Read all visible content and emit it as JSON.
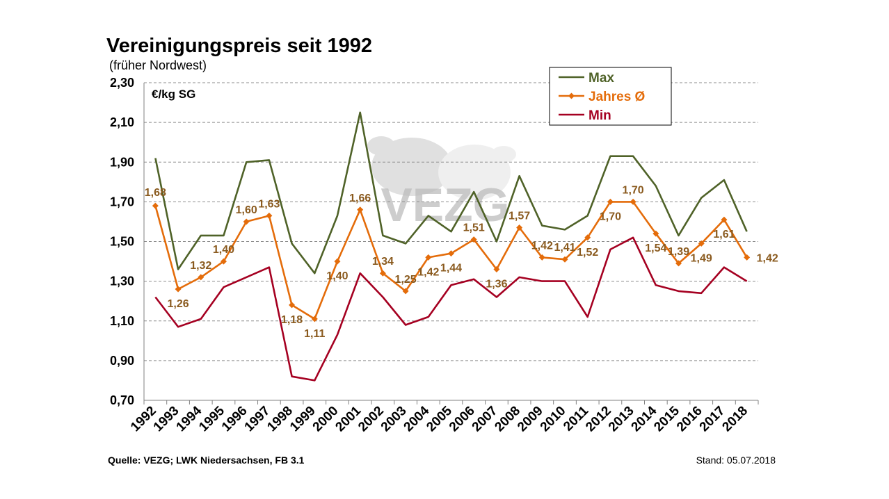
{
  "header": {
    "title": "Vereinigungspreis seit 1992",
    "subtitle": "(früher Nordwest)"
  },
  "footer": {
    "source": "Quelle: VEZG; LWK Niedersachsen, FB 3.1",
    "date": "Stand: 05.07.2018"
  },
  "watermark": "VEZG",
  "chart_data": {
    "type": "line",
    "title": "Vereinigungspreis seit 1992",
    "subtitle": "(früher Nordwest)",
    "ylabel": "€/kg SG",
    "ylim": [
      0.7,
      2.3
    ],
    "yticks": [
      "0,70",
      "0,90",
      "1,10",
      "1,30",
      "1,50",
      "1,70",
      "1,90",
      "2,10",
      "2,30"
    ],
    "grid": true,
    "legend_position": "top-right",
    "categories": [
      "1992",
      "1993",
      "1994",
      "1995",
      "1996",
      "1997",
      "1998",
      "1999",
      "2000",
      "2001",
      "2002",
      "2003",
      "2004",
      "2005",
      "2006",
      "2007",
      "2008",
      "2009",
      "2010",
      "2011",
      "2012",
      "2013",
      "2014",
      "2015",
      "2016",
      "2017",
      "2018"
    ],
    "series": [
      {
        "name": "Max",
        "color": "#4f6228",
        "values": [
          1.92,
          1.36,
          1.53,
          1.53,
          1.9,
          1.91,
          1.49,
          1.34,
          1.63,
          2.15,
          1.53,
          1.49,
          1.63,
          1.55,
          1.75,
          1.5,
          1.83,
          1.58,
          1.56,
          1.63,
          1.93,
          1.93,
          1.78,
          1.53,
          1.72,
          1.81,
          1.55
        ]
      },
      {
        "name": "Jahres Ø",
        "color": "#e46c0a",
        "values": [
          1.68,
          1.26,
          1.32,
          1.4,
          1.6,
          1.63,
          1.18,
          1.11,
          1.4,
          1.66,
          1.34,
          1.25,
          1.42,
          1.44,
          1.51,
          1.36,
          1.57,
          1.42,
          1.41,
          1.52,
          1.7,
          1.7,
          1.54,
          1.39,
          1.49,
          1.61,
          1.42
        ],
        "data_labels": [
          "1,68",
          "1,26",
          "1,32",
          "1,40",
          "1,60",
          "1,63",
          "1,18",
          "1,11",
          "1,40",
          "1,66",
          "1,34",
          "1,25",
          "1,42",
          "1,44",
          "1,51",
          "1,36",
          "1,57",
          "1,42",
          "1,41",
          "1,52",
          "1,70",
          "1,70",
          "1,54",
          "1,39",
          "1,49",
          "1,61",
          "1,42"
        ]
      },
      {
        "name": "Min",
        "color": "#a50021",
        "values": [
          1.22,
          1.07,
          1.11,
          1.27,
          1.32,
          1.37,
          0.82,
          0.8,
          1.03,
          1.34,
          1.22,
          1.08,
          1.12,
          1.28,
          1.31,
          1.22,
          1.32,
          1.3,
          1.3,
          1.12,
          1.46,
          1.52,
          1.28,
          1.25,
          1.24,
          1.37,
          1.3
        ]
      }
    ]
  }
}
